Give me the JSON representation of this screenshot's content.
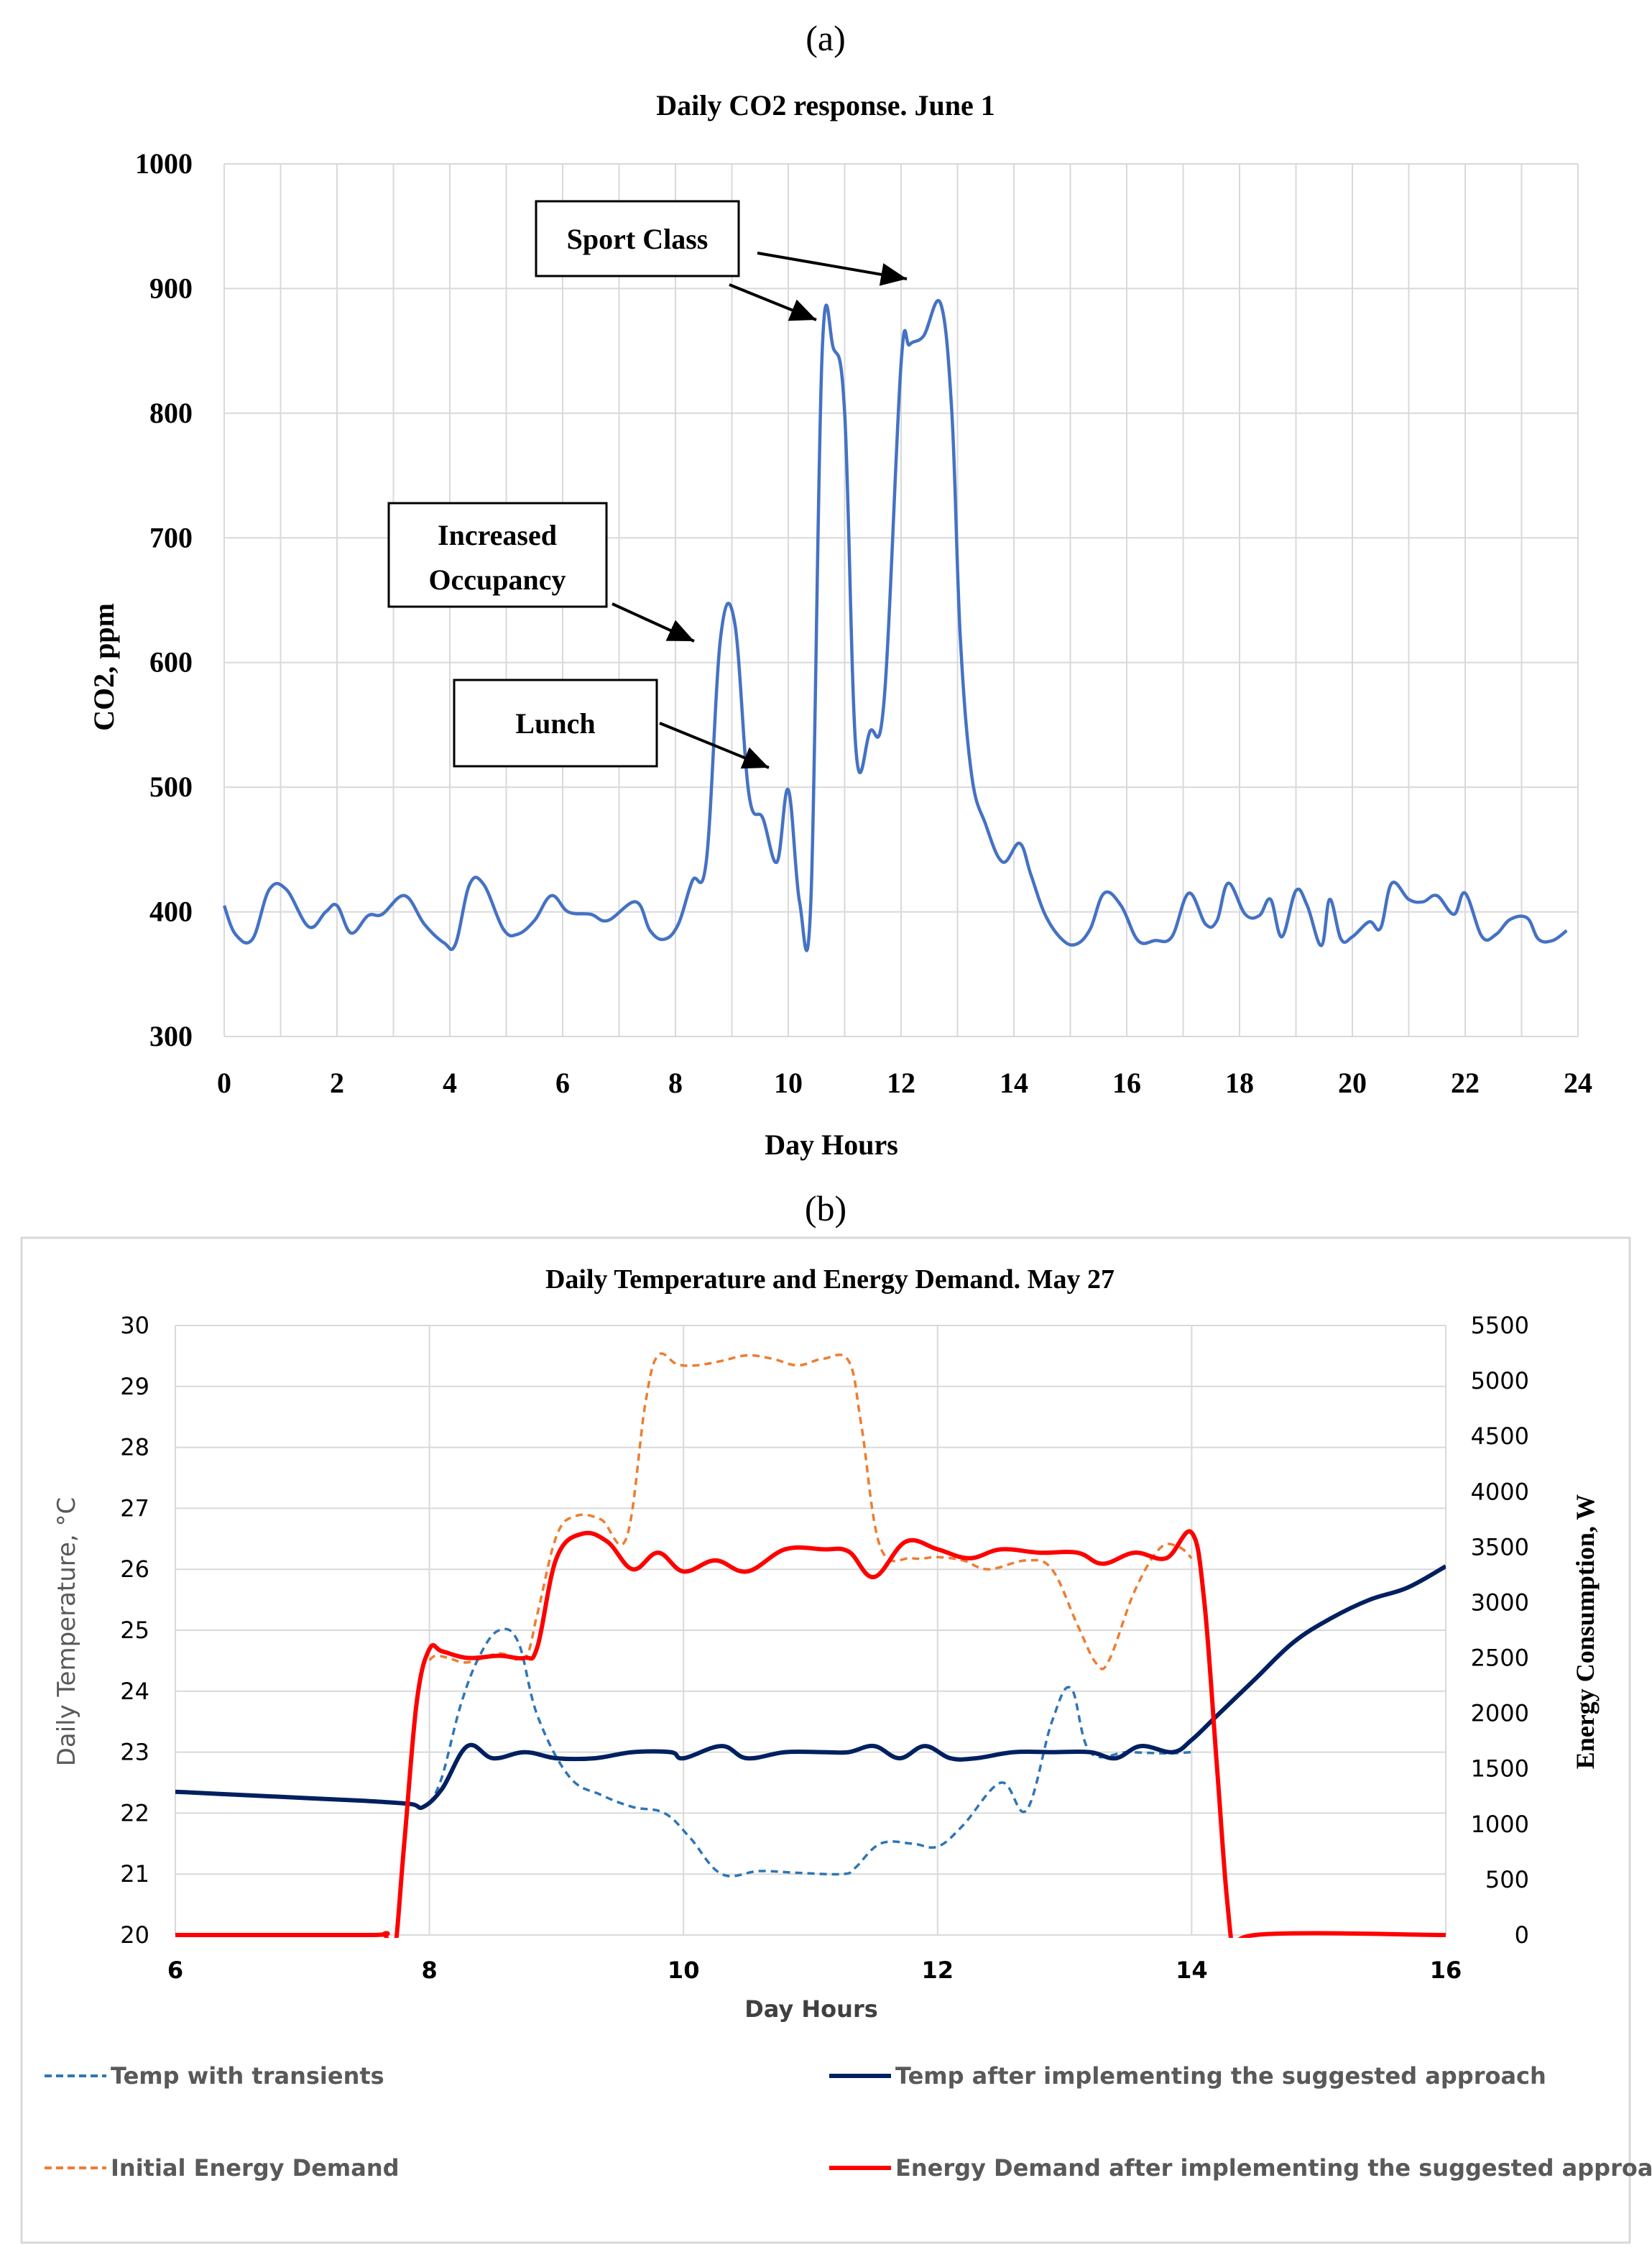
{
  "colors": {
    "co2_line": "#4472C4",
    "temp_transients": "#2E75B6",
    "temp_after": "#002060",
    "energy_initial": "#ED7D31",
    "energy_after": "#FF0000",
    "grid": "#D9D9D9",
    "text": "#000000",
    "text_b": "#404040"
  },
  "chart_data": [
    {
      "panel_label": "(a)",
      "type": "line",
      "title": "Daily CO2 response. June 1",
      "xlabel": "Day Hours",
      "ylabel": "CO2, ppm",
      "xlim": [
        0,
        24
      ],
      "ylim": [
        300,
        1000
      ],
      "x_ticks": [
        "0",
        "2",
        "4",
        "6",
        "8",
        "10",
        "12",
        "14",
        "16",
        "18",
        "20",
        "22",
        "24"
      ],
      "y_ticks": [
        "300",
        "400",
        "500",
        "600",
        "700",
        "800",
        "900",
        "1000"
      ],
      "grid": true,
      "series": [
        {
          "name": "CO2",
          "x": [
            0.0,
            0.2,
            0.5,
            0.8,
            1.1,
            1.5,
            1.8,
            2.0,
            2.25,
            2.55,
            2.8,
            3.2,
            3.55,
            3.9,
            4.1,
            4.35,
            4.6,
            4.95,
            5.2,
            5.5,
            5.8,
            6.1,
            6.5,
            6.8,
            7.3,
            7.55,
            7.8,
            8.05,
            8.3,
            8.55,
            8.8,
            9.05,
            9.3,
            9.55,
            9.8,
            10.0,
            10.2,
            10.4,
            10.6,
            10.8,
            11.0,
            11.2,
            11.45,
            11.7,
            12.0,
            12.15,
            12.4,
            12.7,
            12.9,
            13.05,
            13.25,
            13.5,
            13.8,
            14.1,
            14.3,
            14.55,
            14.85,
            15.1,
            15.35,
            15.6,
            15.9,
            16.2,
            16.5,
            16.8,
            17.1,
            17.4,
            17.6,
            17.8,
            18.1,
            18.35,
            18.55,
            18.75,
            19.0,
            19.2,
            19.45,
            19.6,
            19.8,
            20.0,
            20.3,
            20.5,
            20.7,
            21.0,
            21.25,
            21.5,
            21.8,
            22.0,
            22.3,
            22.55,
            22.8,
            23.1,
            23.3,
            23.55,
            23.8
          ],
          "y": [
            405,
            382,
            378,
            418,
            418,
            388,
            400,
            405,
            383,
            397,
            398,
            413,
            390,
            375,
            374,
            422,
            422,
            386,
            382,
            393,
            413,
            400,
            398,
            393,
            408,
            385,
            378,
            390,
            425,
            442,
            620,
            632,
            495,
            475,
            440,
            498,
            408,
            408,
            848,
            852,
            800,
            530,
            545,
            570,
            840,
            855,
            862,
            888,
            800,
            620,
            510,
            470,
            440,
            455,
            430,
            398,
            378,
            374,
            386,
            415,
            405,
            377,
            377,
            380,
            415,
            390,
            393,
            423,
            398,
            397,
            410,
            380,
            417,
            405,
            373,
            410,
            378,
            380,
            392,
            387,
            423,
            410,
            408,
            413,
            398,
            415,
            380,
            382,
            394,
            395,
            378,
            377,
            385
          ]
        }
      ],
      "annotations": [
        {
          "text": "Sport Class"
        },
        {
          "text": "Increased Occupancy"
        },
        {
          "text": "Lunch"
        }
      ]
    },
    {
      "panel_label": "(b)",
      "type": "line",
      "title": "Daily Temperature and Energy Demand. May 27",
      "xlabel": "Day Hours",
      "ylabel": "Daily Temperature, °C",
      "y2label": "Energy Consumption, W",
      "xlim": [
        6,
        16
      ],
      "ylim": [
        20,
        30
      ],
      "y2lim": [
        0,
        5500
      ],
      "x_ticks": [
        "6",
        "8",
        "10",
        "12",
        "14",
        "16"
      ],
      "y_ticks": [
        "20",
        "21",
        "22",
        "23",
        "24",
        "25",
        "26",
        "27",
        "28",
        "29",
        "30"
      ],
      "y2_ticks": [
        "0",
        "500",
        "1000",
        "1500",
        "2000",
        "2500",
        "3000",
        "3500",
        "4000",
        "4500",
        "5000",
        "5500"
      ],
      "grid": true,
      "legend_position": "bottom",
      "series": [
        {
          "name": "Temp with transients",
          "axis": "left",
          "style": "dashed",
          "x": [
            8.0,
            8.1,
            8.25,
            8.4,
            8.55,
            8.7,
            8.85,
            9.1,
            9.35,
            9.6,
            9.85,
            10.05,
            10.3,
            10.6,
            10.9,
            11.25,
            11.35,
            11.55,
            11.8,
            12.0,
            12.2,
            12.5,
            12.7,
            12.9,
            13.05,
            13.2,
            13.5,
            13.8,
            14.0
          ],
          "y": [
            22.15,
            22.6,
            23.8,
            24.6,
            25.0,
            24.8,
            23.6,
            22.6,
            22.3,
            22.1,
            22.0,
            21.6,
            21.0,
            21.05,
            21.02,
            21.0,
            21.1,
            21.5,
            21.5,
            21.45,
            21.8,
            22.5,
            22.05,
            23.5,
            24.05,
            23.0,
            23.0,
            22.98,
            23.0
          ]
        },
        {
          "name": "Temp after implementing the suggested approach",
          "axis": "left",
          "style": "solid",
          "x": [
            6.0,
            6.5,
            7.0,
            7.5,
            7.85,
            7.95,
            8.1,
            8.3,
            8.5,
            8.75,
            9.0,
            9.3,
            9.6,
            9.9,
            10.0,
            10.3,
            10.5,
            10.8,
            11.1,
            11.3,
            11.5,
            11.7,
            11.9,
            12.1,
            12.3,
            12.6,
            12.9,
            13.2,
            13.4,
            13.6,
            13.85,
            14.0,
            14.2,
            14.5,
            14.8,
            15.1,
            15.4,
            15.7,
            16.0
          ],
          "y": [
            22.35,
            22.3,
            22.25,
            22.2,
            22.15,
            22.1,
            22.4,
            23.1,
            22.9,
            23.0,
            22.9,
            22.9,
            23.0,
            23.0,
            22.9,
            23.1,
            22.9,
            23.0,
            23.0,
            23.0,
            23.1,
            22.9,
            23.1,
            22.9,
            22.9,
            23.0,
            23.0,
            23.0,
            22.9,
            23.1,
            23.0,
            23.2,
            23.6,
            24.2,
            24.8,
            25.2,
            25.5,
            25.7,
            26.05
          ]
        },
        {
          "name": "Initial Energy Demand",
          "axis": "right",
          "style": "dashed",
          "x": [
            8.0,
            8.05,
            8.15,
            8.3,
            8.55,
            8.75,
            8.85,
            9.0,
            9.15,
            9.35,
            9.55,
            9.7,
            9.8,
            9.95,
            10.1,
            10.3,
            10.5,
            10.7,
            10.9,
            11.1,
            11.3,
            11.4,
            11.55,
            11.8,
            12.0,
            12.2,
            12.4,
            12.7,
            12.9,
            13.1,
            13.25,
            13.35,
            13.55,
            13.75,
            13.9,
            14.0
          ],
          "y": [
            2480,
            2520,
            2500,
            2460,
            2540,
            2500,
            2900,
            3600,
            3780,
            3750,
            3580,
            4800,
            5230,
            5150,
            5140,
            5180,
            5230,
            5200,
            5140,
            5200,
            5180,
            4600,
            3500,
            3400,
            3410,
            3380,
            3300,
            3380,
            3300,
            2800,
            2450,
            2480,
            3100,
            3490,
            3500,
            3400
          ]
        },
        {
          "name": "Energy Demand after implementing the suggested approach",
          "axis": "right",
          "style": "solid",
          "x": [
            6.0,
            7.5,
            7.65,
            7.72,
            7.8,
            7.9,
            8.0,
            8.1,
            8.3,
            8.55,
            8.75,
            8.85,
            9.0,
            9.2,
            9.4,
            9.6,
            9.8,
            10.0,
            10.25,
            10.5,
            10.8,
            11.1,
            11.3,
            11.5,
            11.75,
            12.0,
            12.25,
            12.5,
            12.8,
            13.1,
            13.3,
            13.55,
            13.8,
            14.0,
            14.1,
            14.2,
            14.28,
            14.35,
            14.5,
            16.0
          ],
          "y": [
            0,
            0,
            0,
            -200,
            800,
            2100,
            2580,
            2560,
            2500,
            2520,
            2500,
            2600,
            3400,
            3620,
            3550,
            3300,
            3450,
            3280,
            3380,
            3280,
            3480,
            3480,
            3460,
            3230,
            3550,
            3480,
            3400,
            3480,
            3450,
            3450,
            3350,
            3450,
            3400,
            3630,
            3000,
            1500,
            300,
            -200,
            0,
            0
          ]
        }
      ]
    }
  ]
}
